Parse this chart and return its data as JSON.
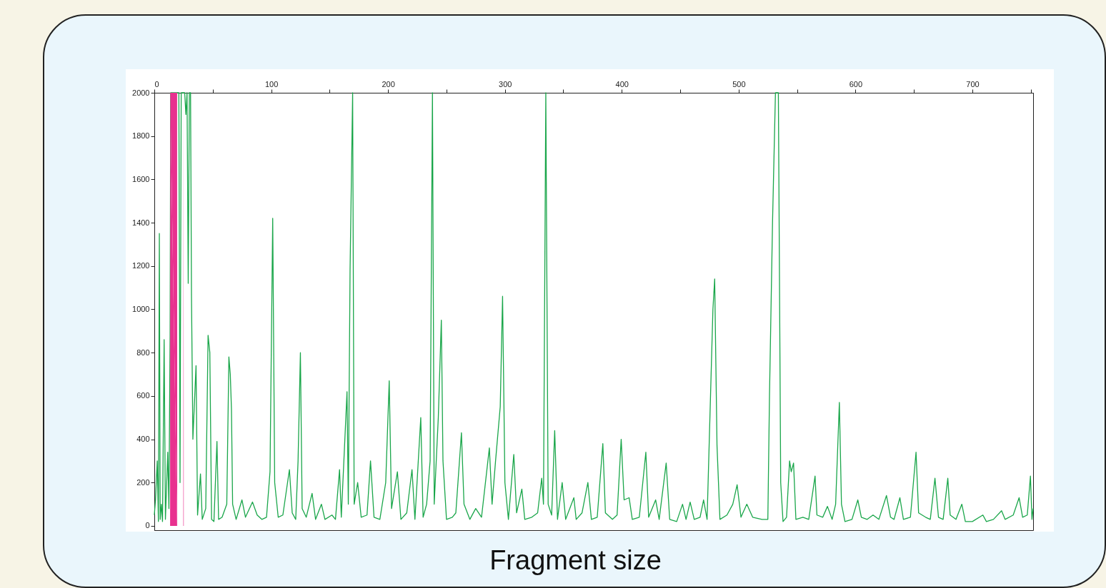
{
  "chart_data": {
    "type": "line",
    "xlabel": "Fragment size",
    "xlim": [
      0,
      752
    ],
    "ylim": [
      -20,
      2000
    ],
    "xticks": [
      0,
      {
        "value": 50,
        "label": null
      },
      100,
      {
        "value": 150,
        "label": null
      },
      200,
      {
        "value": 250,
        "label": null
      },
      300,
      {
        "value": 350,
        "label": null
      },
      400,
      {
        "value": 450,
        "label": null
      },
      500,
      {
        "value": 550,
        "label": null
      },
      600,
      {
        "value": 650,
        "label": null
      },
      700,
      {
        "value": 750,
        "label": null
      }
    ],
    "yticks": [
      0,
      200,
      400,
      600,
      800,
      1000,
      1200,
      1400,
      1600,
      1800,
      2000
    ],
    "grid": false,
    "line_style": "solid",
    "marker": "none",
    "series": [
      {
        "color": "#1aa64a",
        "x": [
          0,
          1,
          2.5,
          3.5,
          4.3,
          5,
          6,
          7,
          8.4,
          9.5,
          11.5,
          12.5,
          13.5,
          14,
          21,
          22,
          23,
          26,
          27,
          28,
          29,
          30,
          31,
          31.8,
          33,
          35.7,
          37,
          39.5,
          41,
          44,
          46,
          47.5,
          49,
          51,
          53.6,
          55,
          58,
          62,
          63.8,
          65,
          66,
          67,
          70,
          75,
          78,
          84,
          88,
          92,
          96,
          99,
          101.3,
          103,
          106,
          110,
          115.6,
          118,
          121,
          123,
          125,
          126.5,
          130,
          135,
          138,
          143,
          146,
          152,
          155,
          158.5,
          160,
          164.9,
          166,
          167.5,
          169.7,
          171,
          174,
          177,
          182,
          185,
          188,
          193,
          198,
          201,
          203,
          208,
          211,
          216,
          220.5,
          223,
          228,
          230,
          233,
          236,
          238,
          239.5,
          243,
          245.6,
          247,
          250,
          255,
          258,
          262.8,
          265,
          270,
          275,
          280,
          286.7,
          289,
          292,
          296,
          298,
          300,
          303,
          307.6,
          310,
          314.5,
          317,
          323,
          328,
          331.5,
          333,
          335,
          337,
          340,
          342.6,
          345,
          349,
          352,
          359,
          361,
          366,
          371,
          374,
          379,
          383.8,
          386,
          392,
          396,
          399.5,
          402,
          406.3,
          409,
          415,
          420.6,
          423,
          429,
          432,
          438,
          441,
          447,
          452,
          455,
          458.5,
          462,
          467,
          470,
          473,
          478,
          479.5,
          481.5,
          484,
          490,
          495,
          498.7,
          502,
          507,
          512,
          520,
          525,
          526.4,
          529,
          531.5,
          534,
          536,
          538,
          541,
          543.6,
          545,
          547,
          549,
          555,
          560,
          565.4,
          567,
          572,
          576,
          580,
          583,
          586.2,
          588,
          591,
          597,
          602,
          605,
          610,
          615,
          620,
          626.5,
          630,
          633,
          638,
          641,
          647,
          651.8,
          654,
          660,
          664,
          668,
          671,
          675,
          679,
          681,
          686,
          691,
          694,
          700,
          709,
          712,
          718,
          725,
          728,
          735,
          740,
          743,
          747,
          749.7,
          751,
          752
        ],
        "values": [
          50,
          120,
          300,
          20,
          1350,
          30,
          100,
          20,
          860,
          30,
          340,
          80,
          880,
          2000,
          2000,
          200,
          2000,
          2000,
          1900,
          2000,
          1120,
          2000,
          2000,
          1060,
          400,
          740,
          50,
          240,
          30,
          80,
          880,
          800,
          30,
          20,
          390,
          30,
          40,
          100,
          780,
          700,
          540,
          100,
          30,
          120,
          40,
          110,
          50,
          30,
          40,
          250,
          1420,
          200,
          40,
          50,
          260,
          60,
          30,
          300,
          800,
          80,
          40,
          150,
          30,
          100,
          30,
          50,
          30,
          260,
          40,
          620,
          100,
          1180,
          2000,
          100,
          200,
          40,
          50,
          300,
          40,
          30,
          200,
          670,
          80,
          250,
          30,
          60,
          260,
          30,
          500,
          40,
          100,
          300,
          2000,
          100,
          500,
          950,
          300,
          30,
          40,
          60,
          430,
          100,
          30,
          80,
          40,
          360,
          100,
          300,
          550,
          1060,
          200,
          30,
          330,
          60,
          170,
          30,
          40,
          60,
          220,
          100,
          2000,
          100,
          50,
          440,
          30,
          200,
          30,
          130,
          30,
          60,
          200,
          30,
          40,
          380,
          60,
          30,
          50,
          400,
          120,
          130,
          30,
          40,
          340,
          40,
          120,
          30,
          290,
          30,
          20,
          100,
          30,
          110,
          30,
          40,
          120,
          30,
          1000,
          1140,
          370,
          30,
          50,
          100,
          190,
          40,
          100,
          40,
          30,
          30,
          600,
          1400,
          2000,
          2000,
          200,
          20,
          40,
          300,
          250,
          290,
          30,
          40,
          30,
          230,
          50,
          40,
          90,
          30,
          100,
          570,
          100,
          20,
          30,
          120,
          40,
          30,
          50,
          30,
          140,
          40,
          30,
          130,
          30,
          40,
          340,
          60,
          40,
          30,
          220,
          40,
          30,
          220,
          50,
          30,
          100,
          20,
          20,
          50,
          20,
          30,
          70,
          30,
          50,
          130,
          40,
          50,
          230,
          30,
          80
        ]
      },
      {
        "type": "area",
        "color": "#e8318f",
        "x": [
          13.5,
          13.6,
          19.5,
          19.6,
          24.8,
          25,
          25.2
        ],
        "values": [
          0,
          2000,
          2000,
          0,
          0,
          2000,
          0
        ]
      }
    ]
  }
}
